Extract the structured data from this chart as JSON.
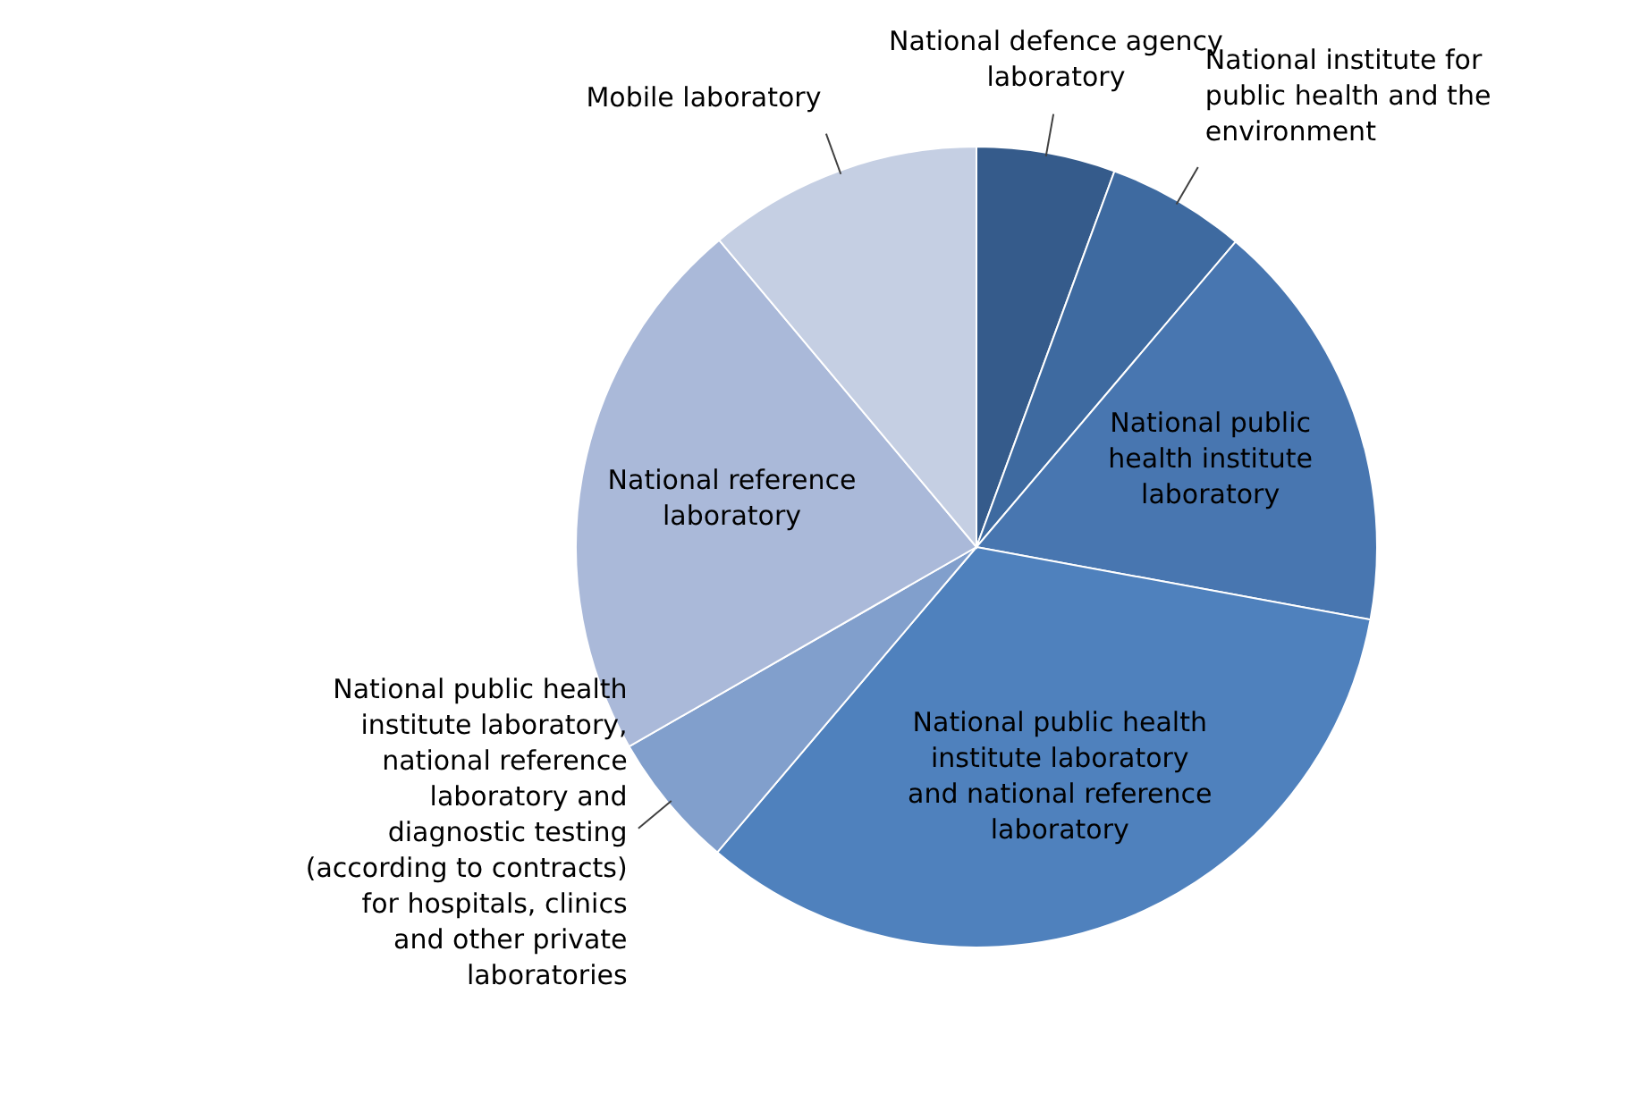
{
  "chart_data": {
    "type": "pie",
    "categories": [
      "National defence agency laboratory",
      "National institute for public health and the environment",
      "National public health institute laboratory",
      "National public health institute laboratory and national reference laboratory",
      "National public health institute laboratory, national reference laboratory and diagnostic testing (according to contracts) for hospitals, clinics and other private laboratories",
      "National reference laboratory",
      "Mobile laboratory"
    ],
    "values": [
      5.6,
      5.6,
      16.7,
      33.3,
      5.5,
      22.2,
      11.1
    ],
    "colors": [
      "#355b8b",
      "#3e6aa0",
      "#4876b0",
      "#4f81bd",
      "#819fcc",
      "#aab9d9",
      "#c5cfe3"
    ]
  }
}
